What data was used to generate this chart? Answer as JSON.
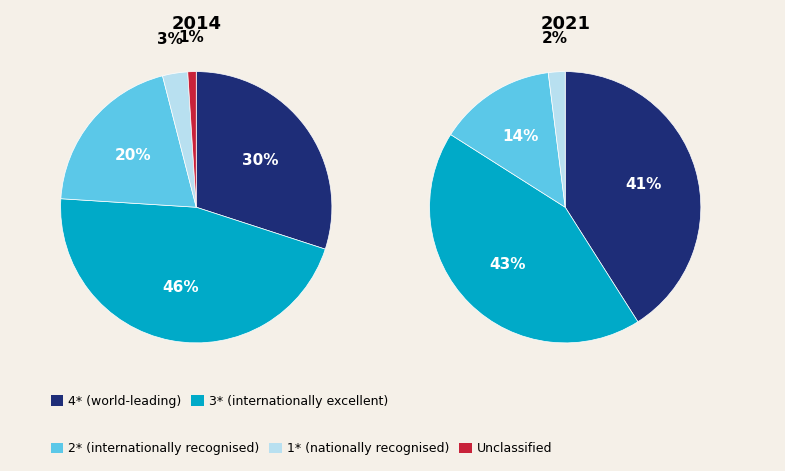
{
  "background_color": "#f5f0e8",
  "title_2014": "2014",
  "title_2021": "2021",
  "title_fontsize": 13,
  "title_fontweight": "bold",
  "pie_2014": {
    "values": [
      30,
      46,
      20,
      3,
      1
    ],
    "colors": [
      "#1e2d78",
      "#00aac8",
      "#5bc8e8",
      "#b8e0f0",
      "#c8223a"
    ],
    "startangle": 90
  },
  "pie_2021": {
    "values": [
      41,
      43,
      14,
      2
    ],
    "colors": [
      "#1e2d78",
      "#00aac8",
      "#5bc8e8",
      "#b8e0f0"
    ],
    "startangle": 90
  },
  "legend_items": [
    {
      "label": "4* (world-leading)",
      "color": "#1e2d78"
    },
    {
      "label": "3* (internationally excellent)",
      "color": "#00aac8"
    },
    {
      "label": "2* (internationally recognised)",
      "color": "#5bc8e8"
    },
    {
      "label": "1* (nationally recognised)",
      "color": "#b8e0f0"
    },
    {
      "label": "Unclassified",
      "color": "#c8223a"
    }
  ],
  "label_fontsize": 11,
  "label_fontweight": "bold",
  "label_color_white": "#ffffff",
  "label_color_dark": "#000000"
}
